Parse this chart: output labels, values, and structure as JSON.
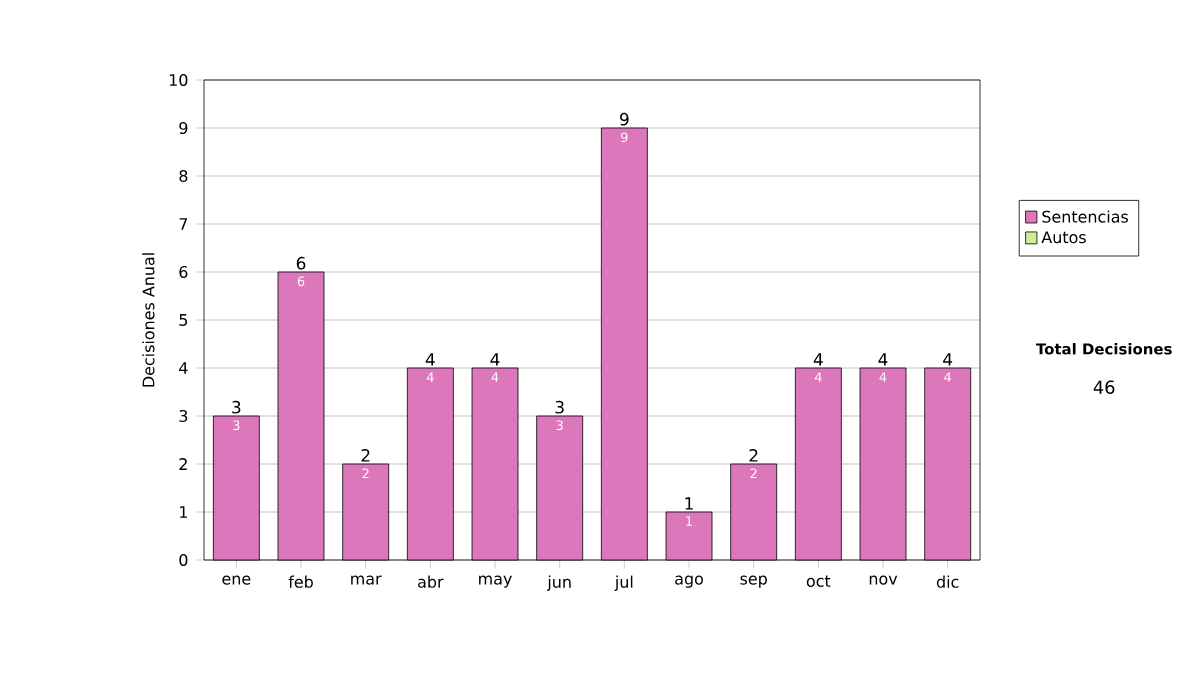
{
  "chart_data": {
    "type": "bar",
    "ylabel": "Decisiones Anual",
    "categories": [
      "ene",
      "feb",
      "mar",
      "abr",
      "may",
      "jun",
      "jul",
      "ago",
      "sep",
      "oct",
      "nov",
      "dic"
    ],
    "series": [
      {
        "name": "Sentencias",
        "color": "#dd77bb",
        "values": [
          3,
          6,
          2,
          4,
          4,
          3,
          9,
          1,
          2,
          4,
          4,
          4
        ],
        "value_labels": [
          "3",
          "6",
          "2",
          "4",
          "4",
          "3",
          "9",
          "1",
          "2",
          "4",
          "4",
          "4"
        ]
      },
      {
        "name": "Autos",
        "color": "#ccee99",
        "values": [
          0,
          0,
          0,
          0,
          0,
          0,
          0,
          0,
          0,
          0,
          0,
          0
        ]
      }
    ],
    "stacked": true,
    "totals": [
      "3",
      "6",
      "2",
      "4",
      "4",
      "3",
      "9",
      "1",
      "2",
      "4",
      "4",
      "4"
    ],
    "annotations": [
      "Total Decisiones",
      "46"
    ],
    "ylim": [
      0,
      10
    ],
    "yticks": [
      0,
      1,
      2,
      3,
      4,
      5,
      6,
      7,
      8,
      9,
      10
    ],
    "grid": "y",
    "legend": "right"
  }
}
